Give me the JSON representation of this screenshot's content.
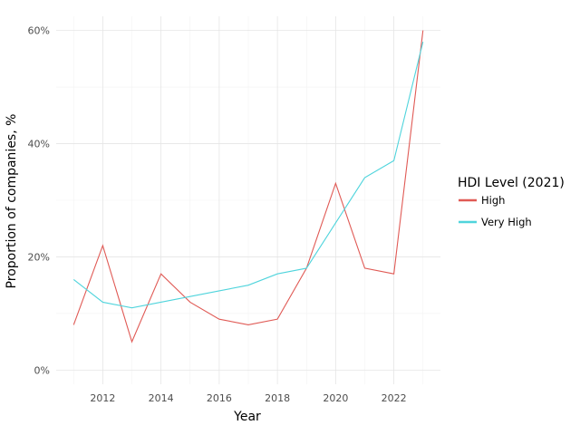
{
  "chart_data": {
    "type": "line",
    "xlabel": "Year",
    "ylabel": "Proportion of companies, %",
    "xlim": [
      2010.4,
      2023.6
    ],
    "ylim": [
      -0.025,
      0.625
    ],
    "x_ticks": [
      2012,
      2014,
      2016,
      2018,
      2020,
      2022
    ],
    "x_tick_labels": [
      "2012",
      "2014",
      "2016",
      "2018",
      "2020",
      "2022"
    ],
    "y_ticks": [
      0,
      0.2,
      0.4,
      0.6
    ],
    "y_tick_labels": [
      "0%",
      "20%",
      "40%",
      "60%"
    ],
    "grid": true,
    "legend": {
      "title": "HDI Level (2021)",
      "placement": "right"
    },
    "x": [
      2011,
      2012,
      2013,
      2014,
      2015,
      2016,
      2017,
      2018,
      2019,
      2020,
      2021,
      2022,
      2023
    ],
    "series": [
      {
        "name": "High",
        "color": "#e05a55",
        "values": [
          0.08,
          0.22,
          0.05,
          0.17,
          0.12,
          0.09,
          0.08,
          0.09,
          0.18,
          0.33,
          0.18,
          0.17,
          0.6
        ]
      },
      {
        "name": "Very High",
        "color": "#4fd4dc",
        "values": [
          0.16,
          0.12,
          0.11,
          0.12,
          0.13,
          0.14,
          0.15,
          0.17,
          0.18,
          0.26,
          0.34,
          0.37,
          0.58
        ]
      }
    ]
  }
}
